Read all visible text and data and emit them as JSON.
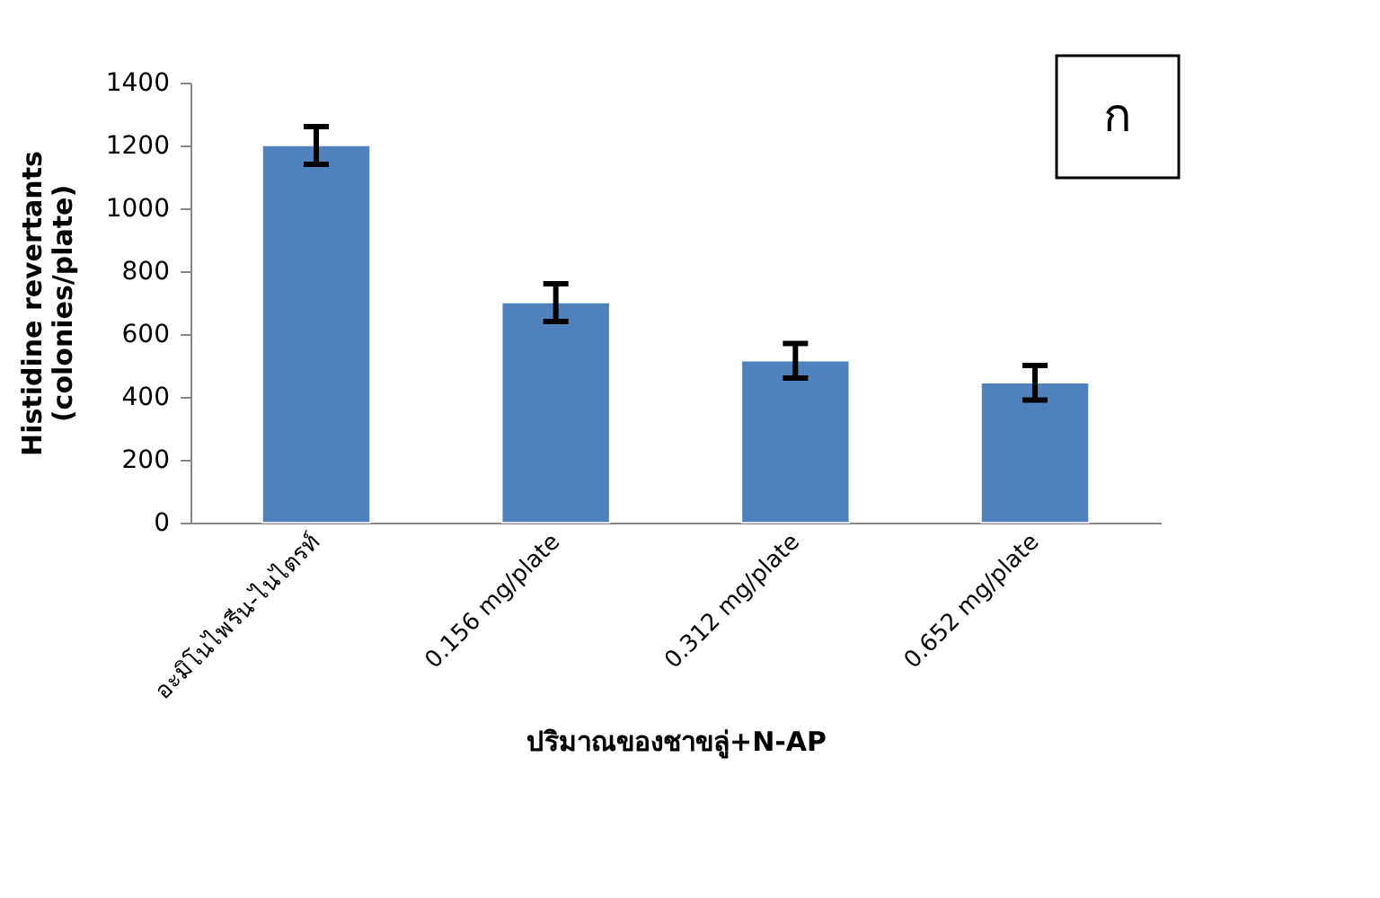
{
  "chart_data": {
    "type": "bar",
    "xlabel": "ปริมาณของชาขลู่+N-AP",
    "ylabel": "Histidine revertants\n(colonies/plate)",
    "categories": [
      "อะมิโนไพรีน-ไนไตรท์",
      "0.156 mg/plate",
      "0.312 mg/plate",
      "0.652 mg/plate"
    ],
    "values": [
      1200,
      700,
      515,
      445
    ],
    "errors": [
      60,
      60,
      55,
      55
    ],
    "color": "#4f81bd",
    "ylim": [
      0,
      1400
    ],
    "yticks": [
      0,
      200,
      400,
      600,
      800,
      1000,
      1200,
      1400
    ],
    "grid": false,
    "annotations": [
      "ก"
    ]
  }
}
